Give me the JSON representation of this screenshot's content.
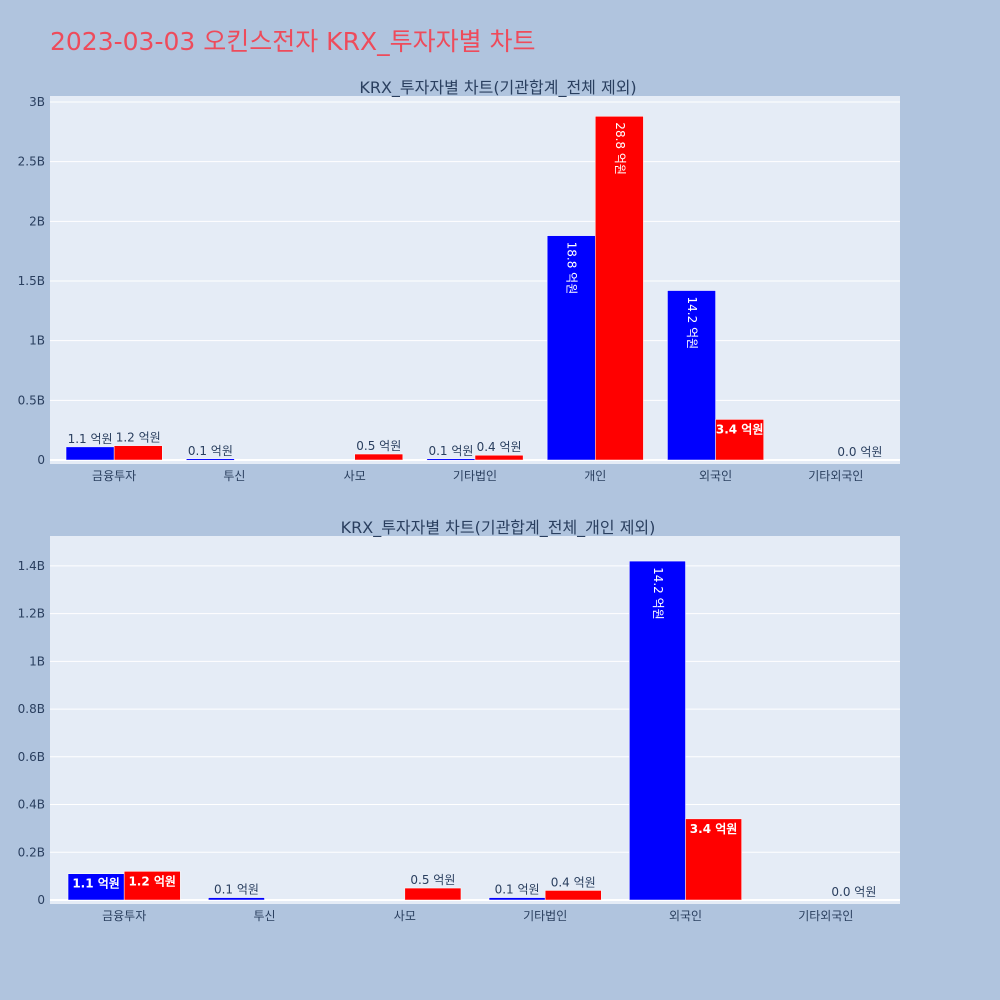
{
  "page": {
    "title": "2023-03-03 오킨스전자 KRX_투자자별 차트"
  },
  "colors": {
    "background": "#b0c4de",
    "plot_bg": "#e5ecf6",
    "buy": "#0000ff",
    "sell": "#ff0000",
    "title": "#ee4b5b",
    "text": "#2a3f5f"
  },
  "chart_data": [
    {
      "type": "bar",
      "title": "KRX_투자자별 차트(기관합계_전체 제외)",
      "categories": [
        "금융투자",
        "투신",
        "사모",
        "기타법인",
        "개인",
        "외국인",
        "기타외국인"
      ],
      "series": [
        {
          "color": "#0000ff",
          "values": [
            110000000,
            10000000,
            0,
            10000000,
            1880000000,
            1420000000,
            0
          ],
          "labels": [
            "1.1 억원",
            "0.1 억원",
            "",
            "0.1 억원",
            "18.8 억원",
            "14.2 억원",
            ""
          ]
        },
        {
          "color": "#ff0000",
          "values": [
            120000000,
            0,
            50000000,
            40000000,
            2880000000,
            340000000,
            0
          ],
          "labels": [
            "1.2 억원",
            "",
            "0.5 억원",
            "0.4 억원",
            "28.8 억원",
            "3.4 억원",
            "0.0 억원"
          ]
        }
      ],
      "ylim": [
        0,
        3000000000
      ],
      "yticks": [
        0,
        500000000,
        1000000000,
        1500000000,
        2000000000,
        2500000000,
        3000000000
      ],
      "ytick_labels": [
        "0",
        "0.5B",
        "1B",
        "1.5B",
        "2B",
        "2.5B",
        "3B"
      ],
      "grid": true,
      "legend": "none"
    },
    {
      "type": "bar",
      "title": "KRX_투자자별 차트(기관합계_전체_개인 제외)",
      "categories": [
        "금융투자",
        "투신",
        "사모",
        "기타법인",
        "외국인",
        "기타외국인"
      ],
      "series": [
        {
          "color": "#0000ff",
          "values": [
            110000000,
            10000000,
            0,
            10000000,
            1420000000,
            0
          ],
          "labels": [
            "1.1 억원",
            "0.1 억원",
            "",
            "0.1 억원",
            "14.2 억원",
            ""
          ]
        },
        {
          "color": "#ff0000",
          "values": [
            120000000,
            0,
            50000000,
            40000000,
            340000000,
            0
          ],
          "labels": [
            "1.2 억원",
            "",
            "0.5 억원",
            "0.4 억원",
            "3.4 억원",
            "0.0 억원"
          ]
        }
      ],
      "ylim": [
        0,
        1500000000
      ],
      "yticks": [
        0,
        200000000,
        400000000,
        600000000,
        800000000,
        1000000000,
        1200000000,
        1400000000
      ],
      "ytick_labels": [
        "0",
        "0.2B",
        "0.4B",
        "0.6B",
        "0.8B",
        "1B",
        "1.2B",
        "1.4B"
      ],
      "grid": true,
      "legend": "none"
    }
  ]
}
